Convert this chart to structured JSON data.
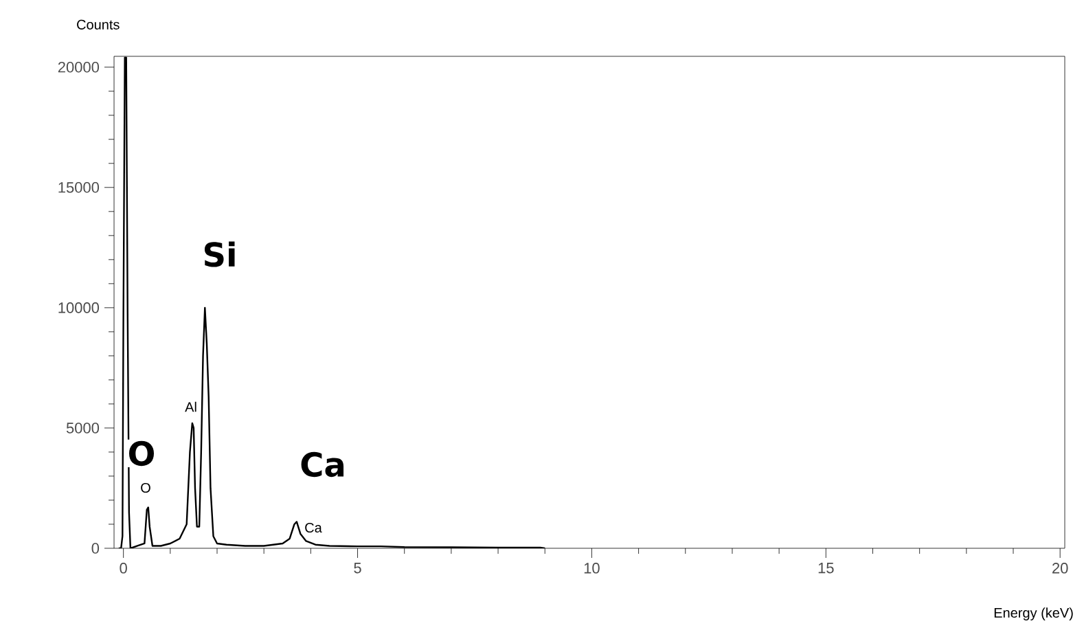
{
  "chart_data": {
    "type": "line",
    "xlabel": "Energy (keV)",
    "ylabel": "Counts",
    "x": [
      -0.1,
      -0.05,
      -0.02,
      0.0,
      0.03,
      0.06,
      0.09,
      0.12,
      0.15,
      0.3,
      0.45,
      0.5,
      0.53,
      0.56,
      0.62,
      0.8,
      1.0,
      1.2,
      1.35,
      1.42,
      1.47,
      1.5,
      1.53,
      1.57,
      1.62,
      1.66,
      1.7,
      1.74,
      1.78,
      1.82,
      1.86,
      1.92,
      2.0,
      2.2,
      2.6,
      3.0,
      3.4,
      3.55,
      3.65,
      3.7,
      3.78,
      3.9,
      4.1,
      4.4,
      5.0,
      5.5,
      6.0,
      7.0,
      8.0,
      8.9,
      9.0
    ],
    "series": [
      {
        "color": "#000000",
        "values": [
          0,
          0,
          500,
          9800,
          20400,
          20400,
          9700,
          1500,
          0,
          100,
          200,
          1600,
          1700,
          900,
          100,
          100,
          200,
          400,
          1000,
          4000,
          5200,
          5000,
          2500,
          900,
          900,
          4000,
          8000,
          10000,
          8500,
          6300,
          2500,
          500,
          200,
          150,
          100,
          100,
          200,
          400,
          1000,
          1100,
          600,
          300,
          150,
          100,
          80,
          80,
          50,
          40,
          30,
          30,
          0
        ]
      }
    ],
    "xlim": [
      -0.2,
      20.1
    ],
    "ylim": [
      0,
      20450
    ],
    "xticks": [
      0,
      5,
      10,
      15,
      20
    ],
    "yticks": [
      0,
      5000,
      10000,
      15000,
      20000
    ],
    "grid": false,
    "marker": "none",
    "line_style": "solid",
    "annotations": [
      "Si",
      "O",
      "Ca",
      "Al",
      "O",
      "Ca"
    ]
  }
}
